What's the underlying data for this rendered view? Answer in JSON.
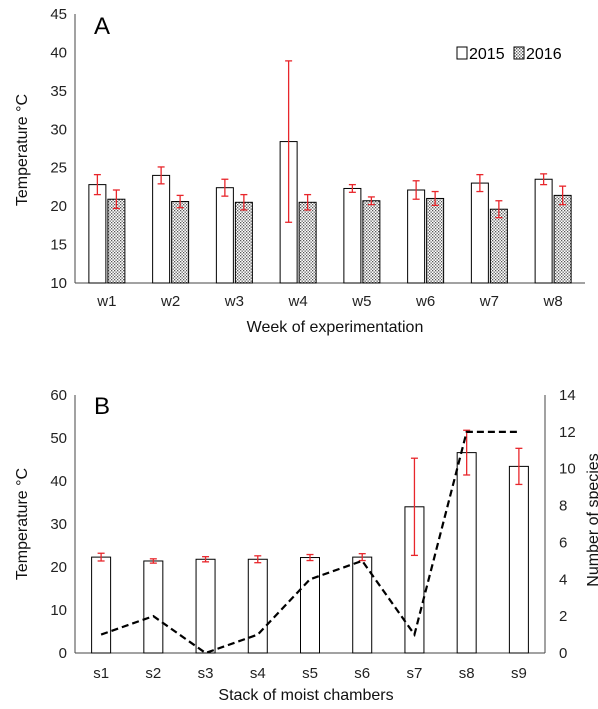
{
  "chart_data": [
    {
      "panel": "A",
      "type": "bar",
      "xlabel": "Week of experimentation",
      "ylabel": "Temperature °C",
      "ylim": [
        10,
        45
      ],
      "yticks": [
        "10",
        "15",
        "20",
        "25",
        "30",
        "35",
        "40",
        "45"
      ],
      "categories": [
        "w1",
        "w2",
        "w3",
        "w4",
        "w5",
        "w6",
        "w7",
        "w8"
      ],
      "legend_position": "top-right",
      "grid": false,
      "series": [
        {
          "name": "2015",
          "values": [
            22.8,
            24.0,
            22.4,
            28.4,
            22.3,
            22.1,
            23.0,
            23.5
          ],
          "errors": [
            1.3,
            1.1,
            1.1,
            10.5,
            0.5,
            1.2,
            1.1,
            0.7
          ]
        },
        {
          "name": "2016",
          "values": [
            20.9,
            20.6,
            20.5,
            20.5,
            20.7,
            21.0,
            19.6,
            21.4
          ],
          "errors": [
            1.2,
            0.8,
            1.0,
            1.0,
            0.5,
            0.9,
            1.1,
            1.2
          ]
        }
      ]
    },
    {
      "panel": "B",
      "type": "bar",
      "xlabel": "Stack of moist chambers",
      "ylabel": "Temperature °C",
      "y2label": "Number of species",
      "ylim": [
        0,
        60
      ],
      "y2lim": [
        0,
        14
      ],
      "yticks": [
        "0",
        "10",
        "20",
        "30",
        "40",
        "50",
        "60"
      ],
      "y2ticks": [
        "0",
        "2",
        "4",
        "6",
        "8",
        "10",
        "12",
        "14"
      ],
      "categories": [
        "s1",
        "s2",
        "s3",
        "s4",
        "s5",
        "s6",
        "s7",
        "s8",
        "s9"
      ],
      "grid": false,
      "bars": {
        "values": [
          22.3,
          21.4,
          21.8,
          21.8,
          22.2,
          22.3,
          34.0,
          46.6,
          43.4
        ],
        "errors": [
          0.9,
          0.5,
          0.6,
          0.8,
          0.7,
          0.8,
          11.3,
          5.2,
          4.2
        ]
      },
      "line": {
        "style": "dashed",
        "axis": "right",
        "values": [
          1,
          2,
          0,
          1,
          4,
          5,
          1,
          12,
          12
        ]
      }
    }
  ],
  "colors": {
    "bar_edge": "#000000",
    "error_bar": "#e8262b",
    "line": "#000000"
  }
}
